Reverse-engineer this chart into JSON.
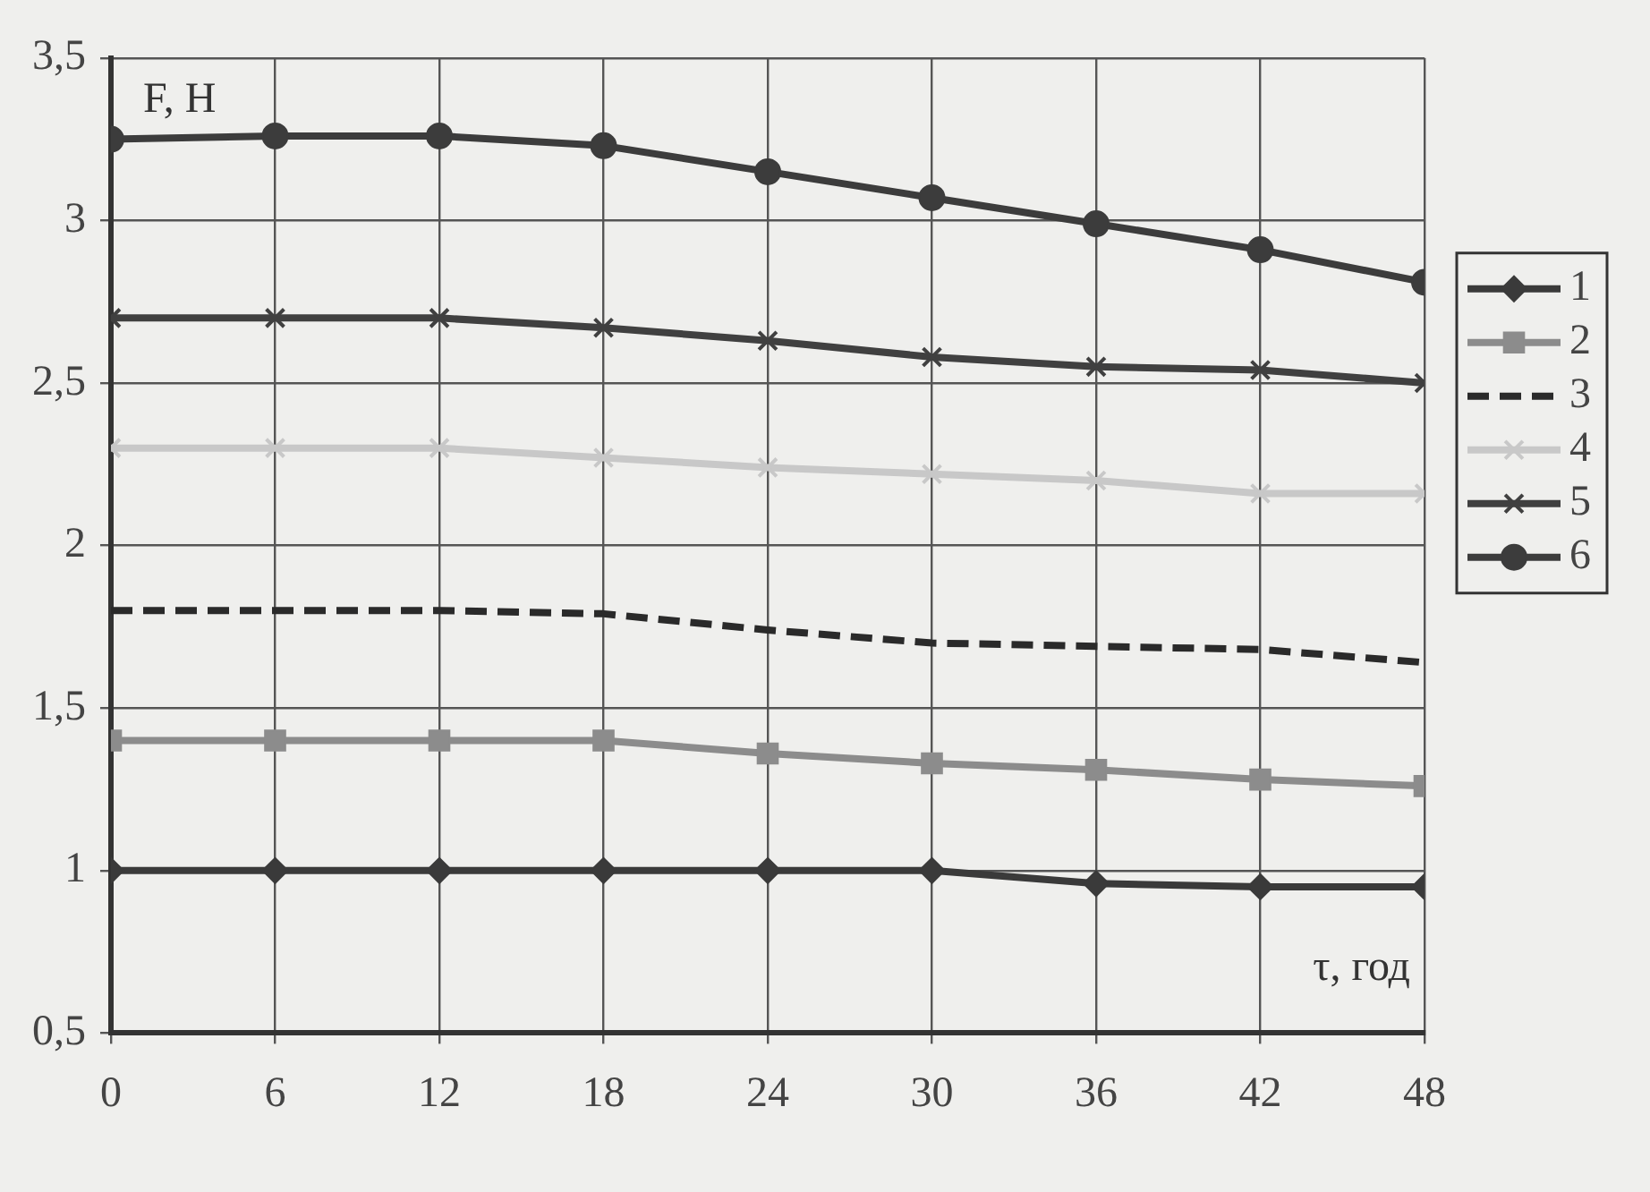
{
  "chart_data": {
    "type": "line",
    "xlabel": "τ, год",
    "ylabel": "F, Н",
    "x": [
      0,
      6,
      12,
      18,
      24,
      30,
      36,
      42,
      48
    ],
    "xlim": [
      0,
      48
    ],
    "xticks": [
      0,
      6,
      12,
      18,
      24,
      30,
      36,
      42,
      48
    ],
    "ylim": [
      0.5,
      3.5
    ],
    "yticks": [
      {
        "value": 0.5,
        "label": "0,5"
      },
      {
        "value": 1,
        "label": "1"
      },
      {
        "value": 1.5,
        "label": "1,5"
      },
      {
        "value": 2,
        "label": "2"
      },
      {
        "value": 2.5,
        "label": "2,5"
      },
      {
        "value": 3,
        "label": "3"
      },
      {
        "value": 3.5,
        "label": "3,5"
      }
    ],
    "grid": true,
    "legend": "right",
    "series": [
      {
        "name": "1",
        "color": "#3a3a3a",
        "marker": "diamond",
        "values": [
          1.0,
          1.0,
          1.0,
          1.0,
          1.0,
          1.0,
          0.96,
          0.95,
          0.95
        ]
      },
      {
        "name": "2",
        "color": "#8c8c8c",
        "marker": "square",
        "values": [
          1.4,
          1.4,
          1.4,
          1.4,
          1.36,
          1.33,
          1.31,
          1.28,
          1.26
        ]
      },
      {
        "name": "3",
        "color": "#2a2a2a",
        "marker": "none",
        "line_style": "dashed",
        "values": [
          1.8,
          1.8,
          1.8,
          1.79,
          1.74,
          1.7,
          1.69,
          1.68,
          1.64
        ]
      },
      {
        "name": "4",
        "color": "#c8c8c8",
        "marker": "cross",
        "values": [
          2.3,
          2.3,
          2.3,
          2.27,
          2.24,
          2.22,
          2.2,
          2.16,
          2.16
        ]
      },
      {
        "name": "5",
        "color": "#404040",
        "marker": "cross",
        "values": [
          2.7,
          2.7,
          2.7,
          2.67,
          2.63,
          2.58,
          2.55,
          2.54,
          2.5
        ]
      },
      {
        "name": "6",
        "color": "#3c3c3c",
        "marker": "circle",
        "values": [
          3.25,
          3.26,
          3.26,
          3.23,
          3.15,
          3.07,
          2.99,
          2.91,
          2.81
        ]
      }
    ]
  }
}
